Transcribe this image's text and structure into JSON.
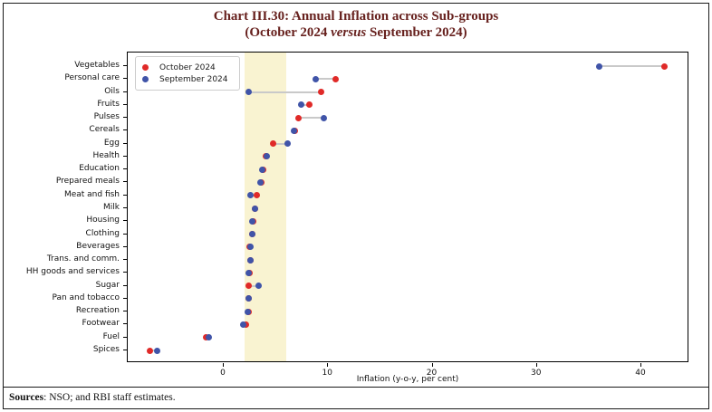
{
  "title": {
    "line1": "Chart III.30: Annual Inflation across Sub-groups",
    "line2_pre": "(October 2024 ",
    "line2_italic": "versus",
    "line2_post": " September 2024)"
  },
  "source": {
    "label": "Sources",
    "text": ": NSO; and RBI staff estimates."
  },
  "colors": {
    "title": "#67211e",
    "frame": "#1a1a1a",
    "band": "#f9f3d1",
    "october": "#e02a28",
    "september": "#4054a8",
    "connector": "#c9c9c9"
  },
  "chart_data": {
    "type": "scatter",
    "subtype": "dumbbell",
    "title": "Chart III.30: Annual Inflation across Sub-groups (October 2024 versus September 2024)",
    "xlabel": "Inflation (y-o-y, per cent)",
    "ylabel": "",
    "grid": false,
    "legend_position": "top-left",
    "xlim": [
      -9.2,
      44.6
    ],
    "xticks": [
      0,
      10,
      20,
      30,
      40
    ],
    "band": {
      "from": 2,
      "to": 6,
      "color": "#f9f3d1"
    },
    "connector_color": "#c9c9c9",
    "categories": [
      "Vegetables",
      "Personal care",
      "Oils",
      "Fruits",
      "Pulses",
      "Cereals",
      "Egg",
      "Health",
      "Education",
      "Prepared meals",
      "Meat and fish",
      "Milk",
      "Housing",
      "Clothing",
      "Beverages",
      "Trans. and comm.",
      "HH goods and services",
      "Sugar",
      "Pan and tobacco",
      "Recreation",
      "Footwear",
      "Fuel",
      "Spices"
    ],
    "series": [
      {
        "name": "October 2024",
        "color": "#e02a28",
        "values": [
          42.2,
          10.7,
          9.3,
          8.2,
          7.2,
          6.8,
          4.7,
          4.0,
          3.8,
          3.6,
          3.2,
          3.0,
          2.8,
          2.7,
          2.5,
          2.6,
          2.5,
          2.4,
          2.4,
          2.4,
          2.1,
          -1.7,
          -7.1
        ]
      },
      {
        "name": "September 2024",
        "color": "#4054a8",
        "values": [
          36.0,
          8.8,
          2.4,
          7.4,
          9.6,
          6.7,
          6.1,
          4.1,
          3.7,
          3.5,
          2.6,
          3.0,
          2.7,
          2.7,
          2.6,
          2.6,
          2.4,
          3.3,
          2.4,
          2.3,
          1.9,
          -1.4,
          -6.4
        ]
      }
    ]
  }
}
